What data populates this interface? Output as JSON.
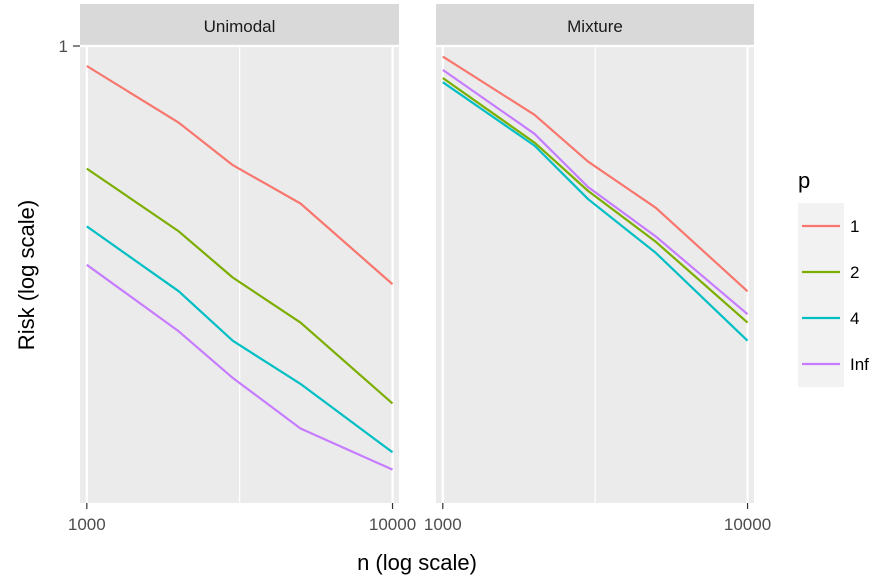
{
  "chart_data": {
    "type": "line",
    "facets": [
      "Unimodal",
      "Mixture"
    ],
    "xlabel": "n (log scale)",
    "ylabel": "Risk (log scale)",
    "xscale": "log",
    "yscale": "log",
    "xlim": [
      950,
      10500
    ],
    "ylim": [
      0.07,
      1.0
    ],
    "x_ticks": [
      1000,
      10000
    ],
    "x_tick_labels": [
      "1000",
      "10000"
    ],
    "y_ticks": [
      1
    ],
    "y_tick_labels": [
      "1"
    ],
    "legend": {
      "title": "p",
      "position": "right",
      "labels": [
        "1",
        "2",
        "4",
        "Inf"
      ]
    },
    "colors": [
      "#F8766D",
      "#7CAE00",
      "#00BFC4",
      "#C77CFF"
    ],
    "grid": true,
    "x": [
      1000,
      2000,
      3000,
      5000,
      10000
    ],
    "panels": [
      {
        "name": "Unimodal",
        "series": [
          {
            "name": "1",
            "values": [
              0.89,
              0.64,
              0.5,
              0.4,
              0.25
            ]
          },
          {
            "name": "2",
            "values": [
              0.49,
              0.34,
              0.26,
              0.2,
              0.125
            ]
          },
          {
            "name": "4",
            "values": [
              0.35,
              0.24,
              0.18,
              0.14,
              0.094
            ]
          },
          {
            "name": "Inf",
            "values": [
              0.28,
              0.19,
              0.145,
              0.108,
              0.085
            ]
          }
        ]
      },
      {
        "name": "Mixture",
        "series": [
          {
            "name": "1",
            "values": [
              0.94,
              0.67,
              0.51,
              0.39,
              0.24
            ]
          },
          {
            "name": "2",
            "values": [
              0.83,
              0.57,
              0.43,
              0.32,
              0.2
            ]
          },
          {
            "name": "4",
            "values": [
              0.81,
              0.56,
              0.41,
              0.3,
              0.18
            ]
          },
          {
            "name": "Inf",
            "values": [
              0.87,
              0.6,
              0.44,
              0.33,
              0.21
            ]
          }
        ]
      }
    ]
  }
}
